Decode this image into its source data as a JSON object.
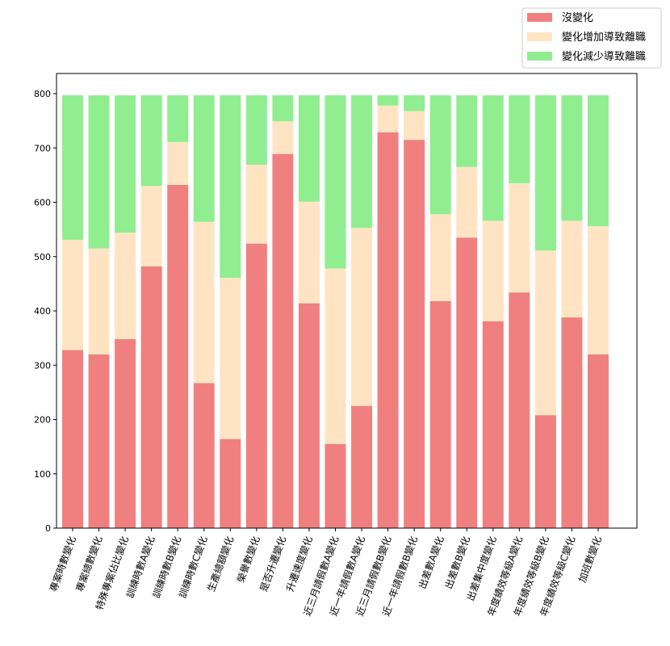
{
  "chart_data": {
    "type": "bar",
    "stacked": true,
    "title": "",
    "xlabel": "",
    "ylabel": "",
    "ylim": [
      0,
      830
    ],
    "yticks": [
      0,
      100,
      200,
      300,
      400,
      500,
      600,
      700,
      800
    ],
    "legend_position": "top-right",
    "categories": [
      "專案時數變化",
      "專案總數變化",
      "特殊專案佔比變化",
      "訓練時數A變化",
      "訓練時數B變化",
      "訓練時數C變化",
      "生產總額變化",
      "榮譽數變化",
      "是否升遷變化",
      "升遷速度變化",
      "近三月請假數A變化",
      "近一年請假數A變化",
      "近三月請假數B變化",
      "近一年請假數B變化",
      "出差數A變化",
      "出差數B變化",
      "出差集中度變化",
      "年度績效等級A變化",
      "年度績效等級B變化",
      "年度績效等級C變化",
      "加班數變化"
    ],
    "series": [
      {
        "name": "沒變化",
        "color": "#f08080",
        "values": [
          328,
          320,
          348,
          482,
          632,
          267,
          164,
          524,
          689,
          414,
          155,
          225,
          729,
          715,
          418,
          535,
          381,
          434,
          208,
          388,
          320
        ]
      },
      {
        "name": "變化增加導致離職",
        "color": "#ffe4c4",
        "values": [
          203,
          195,
          196,
          148,
          79,
          297,
          297,
          145,
          60,
          187,
          323,
          328,
          49,
          53,
          160,
          130,
          185,
          201,
          303,
          178,
          236
        ]
      },
      {
        "name": "變化減少導致離職",
        "color": "#90ee90",
        "values": [
          266,
          282,
          253,
          167,
          86,
          233,
          336,
          128,
          48,
          196,
          319,
          244,
          19,
          29,
          219,
          132,
          231,
          162,
          286,
          231,
          241
        ]
      }
    ]
  }
}
